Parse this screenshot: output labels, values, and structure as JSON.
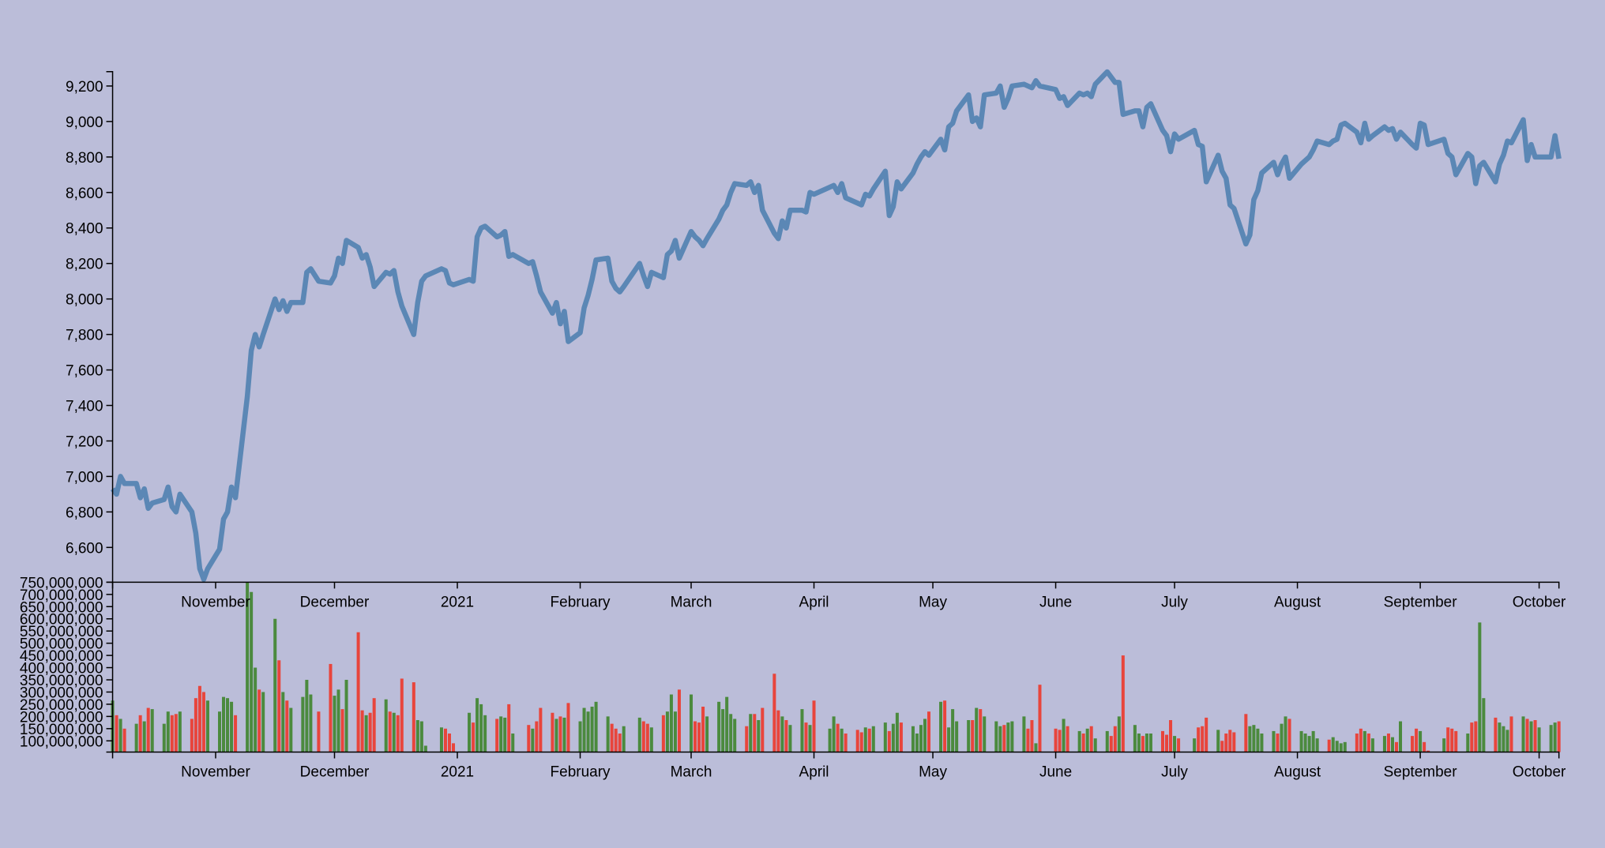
{
  "chart_data": {
    "type": "line",
    "xlim": [
      "2020-10-06",
      "2021-10-06"
    ],
    "xticks": [
      {
        "value": "2020-11-01",
        "label": "November"
      },
      {
        "value": "2020-12-01",
        "label": "December"
      },
      {
        "value": "2021-01-01",
        "label": "2021"
      },
      {
        "value": "2021-02-01",
        "label": "February"
      },
      {
        "value": "2021-03-01",
        "label": "March"
      },
      {
        "value": "2021-04-01",
        "label": "April"
      },
      {
        "value": "2021-05-01",
        "label": "May"
      },
      {
        "value": "2021-06-01",
        "label": "June"
      },
      {
        "value": "2021-07-01",
        "label": "July"
      },
      {
        "value": "2021-08-01",
        "label": "August"
      },
      {
        "value": "2021-09-01",
        "label": "September"
      },
      {
        "value": "2021-10-01",
        "label": "October"
      }
    ],
    "ylim": [
      6404,
      9281
    ],
    "yticks": [
      {
        "value": 6600,
        "label": "6,600"
      },
      {
        "value": 6800,
        "label": "6,800"
      },
      {
        "value": 7000,
        "label": "7,000"
      },
      {
        "value": 7200,
        "label": "7,200"
      },
      {
        "value": 7400,
        "label": "7,400"
      },
      {
        "value": 7600,
        "label": "7,600"
      },
      {
        "value": 7800,
        "label": "7,800"
      },
      {
        "value": 8000,
        "label": "8,000"
      },
      {
        "value": 8200,
        "label": "8,200"
      },
      {
        "value": 8400,
        "label": "8,400"
      },
      {
        "value": 8600,
        "label": "8,600"
      },
      {
        "value": 8800,
        "label": "8,800"
      },
      {
        "value": 9000,
        "label": "9,000"
      },
      {
        "value": 9200,
        "label": "9,200"
      }
    ],
    "y2lim": [
      54000000,
      750000000
    ],
    "y2ticks": [
      {
        "value": 100000000,
        "label": "100,000,000"
      },
      {
        "value": 150000000,
        "label": "150,000,000"
      },
      {
        "value": 200000000,
        "label": "200,000,000"
      },
      {
        "value": 250000000,
        "label": "250,000,000"
      },
      {
        "value": 300000000,
        "label": "300,000,000"
      },
      {
        "value": 350000000,
        "label": "350,000,000"
      },
      {
        "value": 400000000,
        "label": "400,000,000"
      },
      {
        "value": 450000000,
        "label": "450,000,000"
      },
      {
        "value": 500000000,
        "label": "500,000,000"
      },
      {
        "value": 550000000,
        "label": "550,000,000"
      },
      {
        "value": 600000000,
        "label": "600,000,000"
      },
      {
        "value": 650000000,
        "label": "650,000,000"
      },
      {
        "value": 700000000,
        "label": "700,000,000"
      },
      {
        "value": 750000000,
        "label": "750,000,000"
      }
    ],
    "x": [
      "2020-10-06",
      "2020-10-07",
      "2020-10-08",
      "2020-10-09",
      "2020-10-12",
      "2020-10-13",
      "2020-10-14",
      "2020-10-15",
      "2020-10-16",
      "2020-10-19",
      "2020-10-20",
      "2020-10-21",
      "2020-10-22",
      "2020-10-23",
      "2020-10-26",
      "2020-10-27",
      "2020-10-28",
      "2020-10-29",
      "2020-10-30",
      "2020-11-02",
      "2020-11-03",
      "2020-11-04",
      "2020-11-05",
      "2020-11-06",
      "2020-11-09",
      "2020-11-10",
      "2020-11-11",
      "2020-11-12",
      "2020-11-13",
      "2020-11-16",
      "2020-11-17",
      "2020-11-18",
      "2020-11-19",
      "2020-11-20",
      "2020-11-23",
      "2020-11-24",
      "2020-11-25",
      "2020-11-27",
      "2020-11-30",
      "2020-12-01",
      "2020-12-02",
      "2020-12-03",
      "2020-12-04",
      "2020-12-07",
      "2020-12-08",
      "2020-12-09",
      "2020-12-10",
      "2020-12-11",
      "2020-12-14",
      "2020-12-15",
      "2020-12-16",
      "2020-12-17",
      "2020-12-18",
      "2020-12-21",
      "2020-12-22",
      "2020-12-23",
      "2020-12-24",
      "2020-12-28",
      "2020-12-29",
      "2020-12-30",
      "2020-12-31",
      "2021-01-04",
      "2021-01-05",
      "2021-01-06",
      "2021-01-07",
      "2021-01-08",
      "2021-01-11",
      "2021-01-12",
      "2021-01-13",
      "2021-01-14",
      "2021-01-15",
      "2021-01-19",
      "2021-01-20",
      "2021-01-21",
      "2021-01-22",
      "2021-01-25",
      "2021-01-26",
      "2021-01-27",
      "2021-01-28",
      "2021-01-29",
      "2021-02-01",
      "2021-02-02",
      "2021-02-03",
      "2021-02-04",
      "2021-02-05",
      "2021-02-08",
      "2021-02-09",
      "2021-02-10",
      "2021-02-11",
      "2021-02-12",
      "2021-02-16",
      "2021-02-17",
      "2021-02-18",
      "2021-02-19",
      "2021-02-22",
      "2021-02-23",
      "2021-02-24",
      "2021-02-25",
      "2021-02-26",
      "2021-03-01",
      "2021-03-02",
      "2021-03-03",
      "2021-03-04",
      "2021-03-05",
      "2021-03-08",
      "2021-03-09",
      "2021-03-10",
      "2021-03-11",
      "2021-03-12",
      "2021-03-15",
      "2021-03-16",
      "2021-03-17",
      "2021-03-18",
      "2021-03-19",
      "2021-03-22",
      "2021-03-23",
      "2021-03-24",
      "2021-03-25",
      "2021-03-26",
      "2021-03-29",
      "2021-03-30",
      "2021-03-31",
      "2021-04-01",
      "2021-04-05",
      "2021-04-06",
      "2021-04-07",
      "2021-04-08",
      "2021-04-09",
      "2021-04-12",
      "2021-04-13",
      "2021-04-14",
      "2021-04-15",
      "2021-04-16",
      "2021-04-19",
      "2021-04-20",
      "2021-04-21",
      "2021-04-22",
      "2021-04-23",
      "2021-04-26",
      "2021-04-27",
      "2021-04-28",
      "2021-04-29",
      "2021-04-30",
      "2021-05-03",
      "2021-05-04",
      "2021-05-05",
      "2021-05-06",
      "2021-05-07",
      "2021-05-10",
      "2021-05-11",
      "2021-05-12",
      "2021-05-13",
      "2021-05-14",
      "2021-05-17",
      "2021-05-18",
      "2021-05-19",
      "2021-05-20",
      "2021-05-21",
      "2021-05-24",
      "2021-05-25",
      "2021-05-26",
      "2021-05-27",
      "2021-05-28",
      "2021-06-01",
      "2021-06-02",
      "2021-06-03",
      "2021-06-04",
      "2021-06-07",
      "2021-06-08",
      "2021-06-09",
      "2021-06-10",
      "2021-06-11",
      "2021-06-14",
      "2021-06-15",
      "2021-06-16",
      "2021-06-17",
      "2021-06-18",
      "2021-06-21",
      "2021-06-22",
      "2021-06-23",
      "2021-06-24",
      "2021-06-25",
      "2021-06-28",
      "2021-06-29",
      "2021-06-30",
      "2021-07-01",
      "2021-07-02",
      "2021-07-06",
      "2021-07-07",
      "2021-07-08",
      "2021-07-09",
      "2021-07-12",
      "2021-07-13",
      "2021-07-14",
      "2021-07-15",
      "2021-07-16",
      "2021-07-19",
      "2021-07-20",
      "2021-07-21",
      "2021-07-22",
      "2021-07-23",
      "2021-07-26",
      "2021-07-27",
      "2021-07-28",
      "2021-07-29",
      "2021-07-30",
      "2021-08-02",
      "2021-08-03",
      "2021-08-04",
      "2021-08-05",
      "2021-08-06",
      "2021-08-09",
      "2021-08-10",
      "2021-08-11",
      "2021-08-12",
      "2021-08-13",
      "2021-08-16",
      "2021-08-17",
      "2021-08-18",
      "2021-08-19",
      "2021-08-20",
      "2021-08-23",
      "2021-08-24",
      "2021-08-25",
      "2021-08-26",
      "2021-08-27",
      "2021-08-30",
      "2021-08-31",
      "2021-09-01",
      "2021-09-02",
      "2021-09-03",
      "2021-09-07",
      "2021-09-08",
      "2021-09-09",
      "2021-09-10",
      "2021-09-13",
      "2021-09-14",
      "2021-09-15",
      "2021-09-16",
      "2021-09-17",
      "2021-09-20",
      "2021-09-21",
      "2021-09-22",
      "2021-09-23",
      "2021-09-24",
      "2021-09-27",
      "2021-09-28",
      "2021-09-29",
      "2021-09-30",
      "2021-10-01",
      "2021-10-04",
      "2021-10-05",
      "2021-10-06"
    ],
    "series": [
      {
        "type": "line",
        "color": "#5b87b5",
        "values": [
          6930,
          6900,
          7000,
          6960,
          6960,
          6880,
          6930,
          6820,
          6850,
          6870,
          6940,
          6830,
          6800,
          6900,
          6800,
          6680,
          6480,
          6420,
          6480,
          6590,
          6760,
          6800,
          6940,
          6880,
          7450,
          7710,
          7800,
          7730,
          7800,
          8000,
          7940,
          7990,
          7930,
          7980,
          7980,
          8150,
          8170,
          8100,
          8090,
          8130,
          8230,
          8200,
          8330,
          8290,
          8230,
          8250,
          8180,
          8070,
          8150,
          8140,
          8160,
          8040,
          7960,
          7800,
          7980,
          8100,
          8130,
          8170,
          8160,
          8090,
          8080,
          8110,
          8100,
          8350,
          8400,
          8410,
          8350,
          8360,
          8380,
          8240,
          8250,
          8200,
          8210,
          8130,
          8040,
          7920,
          7980,
          7860,
          7930,
          7760,
          7810,
          7950,
          8020,
          8110,
          8220,
          8230,
          8100,
          8060,
          8040,
          8070,
          8200,
          8130,
          8070,
          8150,
          8120,
          8250,
          8270,
          8330,
          8230,
          8380,
          8350,
          8330,
          8300,
          8340,
          8450,
          8500,
          8530,
          8600,
          8650,
          8640,
          8660,
          8600,
          8640,
          8500,
          8370,
          8340,
          8440,
          8400,
          8500,
          8500,
          8490,
          8600,
          8590,
          8630,
          8640,
          8600,
          8650,
          8570,
          8540,
          8530,
          8590,
          8580,
          8620,
          8720,
          8470,
          8520,
          8660,
          8620,
          8710,
          8760,
          8800,
          8830,
          8810,
          8900,
          8840,
          8970,
          8990,
          9060,
          9150,
          9000,
          9020,
          8970,
          9150,
          9160,
          9200,
          9080,
          9130,
          9200,
          9210,
          9200,
          9190,
          9230,
          9200,
          9180,
          9130,
          9140,
          9090,
          9160,
          9150,
          9160,
          9140,
          9210,
          9280,
          9250,
          9220,
          9220,
          9040,
          9060,
          9060,
          8970,
          9080,
          9100,
          8950,
          8920,
          8830,
          8930,
          8900,
          8950,
          8870,
          8860,
          8660,
          8810,
          8720,
          8680,
          8530,
          8510,
          8310,
          8360,
          8560,
          8610,
          8710,
          8770,
          8700,
          8760,
          8800,
          8680,
          8760,
          8780,
          8800,
          8840,
          8890,
          8870,
          8890,
          8900,
          8980,
          8990,
          8940,
          8880,
          8990,
          8900,
          8920,
          8970,
          8950,
          8960,
          8900,
          8940,
          8870,
          8850,
          8990,
          8980,
          8870,
          8900,
          8820,
          8800,
          8700,
          8820,
          8800,
          8650,
          8750,
          8770,
          8660,
          8760,
          8810,
          8890,
          8880,
          9010,
          8780,
          8870,
          8800,
          8800,
          8800,
          8920,
          8790
        ]
      },
      {
        "type": "bar",
        "axis": "y2",
        "up_color": "#4b8a3e",
        "down_color": "#e8453c",
        "values": [
          265000000,
          205000000,
          190000000,
          150000000,
          170000000,
          205000000,
          180000000,
          235000000,
          230000000,
          170000000,
          220000000,
          205000000,
          210000000,
          220000000,
          190000000,
          275000000,
          325000000,
          300000000,
          265000000,
          220000000,
          280000000,
          275000000,
          260000000,
          205000000,
          750000000,
          710000000,
          400000000,
          310000000,
          300000000,
          600000000,
          430000000,
          300000000,
          265000000,
          235000000,
          280000000,
          350000000,
          290000000,
          220000000,
          415000000,
          285000000,
          310000000,
          230000000,
          350000000,
          545000000,
          225000000,
          205000000,
          215000000,
          275000000,
          270000000,
          220000000,
          215000000,
          205000000,
          355000000,
          340000000,
          185000000,
          180000000,
          80000000,
          155000000,
          150000000,
          130000000,
          90000000,
          215000000,
          175000000,
          275000000,
          250000000,
          205000000,
          190000000,
          200000000,
          195000000,
          250000000,
          130000000,
          165000000,
          150000000,
          180000000,
          235000000,
          215000000,
          190000000,
          200000000,
          195000000,
          255000000,
          180000000,
          235000000,
          220000000,
          240000000,
          260000000,
          200000000,
          170000000,
          150000000,
          130000000,
          160000000,
          195000000,
          180000000,
          170000000,
          155000000,
          205000000,
          220000000,
          290000000,
          220000000,
          310000000,
          290000000,
          180000000,
          175000000,
          240000000,
          200000000,
          260000000,
          230000000,
          280000000,
          210000000,
          190000000,
          160000000,
          210000000,
          210000000,
          185000000,
          235000000,
          375000000,
          225000000,
          200000000,
          185000000,
          165000000,
          230000000,
          175000000,
          165000000,
          265000000,
          150000000,
          200000000,
          170000000,
          150000000,
          130000000,
          145000000,
          135000000,
          155000000,
          150000000,
          160000000,
          175000000,
          140000000,
          170000000,
          215000000,
          175000000,
          160000000,
          130000000,
          165000000,
          190000000,
          220000000,
          260000000,
          265000000,
          155000000,
          230000000,
          180000000,
          185000000,
          185000000,
          235000000,
          230000000,
          200000000,
          180000000,
          160000000,
          165000000,
          175000000,
          180000000,
          200000000,
          150000000,
          185000000,
          90000000,
          330000000,
          150000000,
          145000000,
          190000000,
          160000000,
          140000000,
          130000000,
          150000000,
          160000000,
          110000000,
          140000000,
          120000000,
          160000000,
          200000000,
          450000000,
          165000000,
          130000000,
          120000000,
          130000000,
          130000000,
          140000000,
          125000000,
          185000000,
          120000000,
          110000000,
          110000000,
          155000000,
          160000000,
          195000000,
          145000000,
          100000000,
          130000000,
          145000000,
          135000000,
          210000000,
          160000000,
          165000000,
          150000000,
          130000000,
          140000000,
          130000000,
          170000000,
          200000000,
          190000000,
          140000000,
          130000000,
          120000000,
          140000000,
          110000000,
          105000000,
          115000000,
          100000000,
          90000000,
          95000000,
          130000000,
          150000000,
          140000000,
          130000000,
          110000000,
          120000000,
          130000000,
          115000000,
          95000000,
          180000000,
          120000000,
          150000000,
          140000000,
          95000000,
          60000000,
          110000000,
          155000000,
          150000000,
          140000000,
          130000000,
          175000000,
          180000000,
          585000000,
          275000000,
          195000000,
          175000000,
          160000000,
          145000000,
          200000000,
          200000000,
          190000000,
          180000000,
          185000000,
          155000000,
          165000000,
          175000000,
          180000000
        ]
      }
    ]
  }
}
